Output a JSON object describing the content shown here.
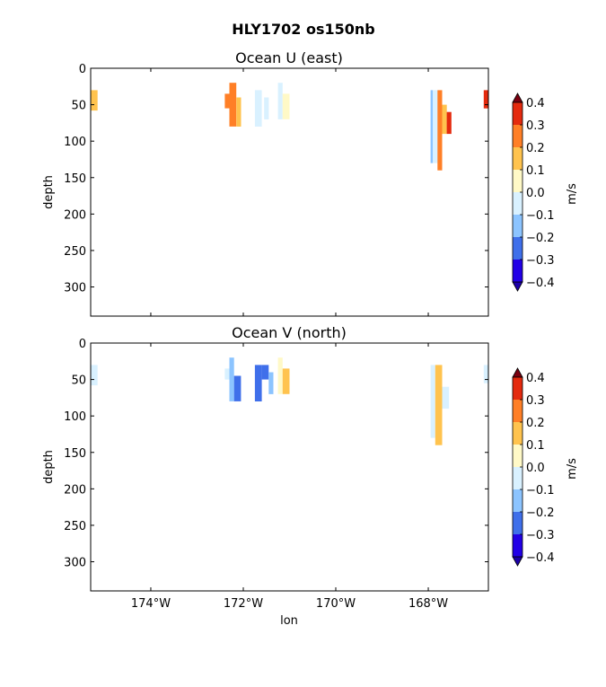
{
  "figure": {
    "suptitle": "HLY1702 os150nb"
  },
  "colorbar": {
    "levels": [
      -0.4,
      -0.3,
      -0.2,
      -0.1,
      0.0,
      0.1,
      0.2,
      0.3,
      0.4
    ],
    "tick_labels": [
      "−0.4",
      "−0.3",
      "−0.2",
      "−0.1",
      "0.0",
      "0.1",
      "0.2",
      "0.3",
      "0.4"
    ],
    "colors": [
      "#2200e6",
      "#3f6fea",
      "#8cc4ff",
      "#d9f1ff",
      "#fff9c7",
      "#ffc34e",
      "#ff7f26",
      "#e42a0e"
    ],
    "under_color": "#1c00a8",
    "over_color": "#7a0010",
    "label": "m/s"
  },
  "chart_data": [
    {
      "type": "heatmap",
      "title": "Ocean U (east)",
      "ylabel": "depth",
      "xlabel": "",
      "xlim": [
        -175.3,
        -166.7
      ],
      "ylim": [
        340,
        0
      ],
      "x_ticks": [
        -174,
        -172,
        -170,
        -168
      ],
      "x_tick_labels": [
        "174°W",
        "172°W",
        "170°W",
        "168°W"
      ],
      "y_ticks": [
        0,
        50,
        100,
        150,
        200,
        250,
        300
      ],
      "y_tick_labels": [
        "0",
        "50",
        "100",
        "150",
        "200",
        "250",
        "300"
      ],
      "grid": false,
      "blobs": [
        {
          "x0": -175.3,
          "x1": -175.15,
          "d0": 30,
          "d1": 58,
          "value": 0.15
        },
        {
          "x0": -172.4,
          "x1": -172.3,
          "d0": 35,
          "d1": 55,
          "value": 0.25
        },
        {
          "x0": -172.3,
          "x1": -172.15,
          "d0": 20,
          "d1": 80,
          "value": 0.25
        },
        {
          "x0": -172.15,
          "x1": -172.05,
          "d0": 40,
          "d1": 80,
          "value": 0.15
        },
        {
          "x0": -171.75,
          "x1": -171.6,
          "d0": 30,
          "d1": 80,
          "value": -0.05
        },
        {
          "x0": -171.55,
          "x1": -171.45,
          "d0": 40,
          "d1": 70,
          "value": -0.05
        },
        {
          "x0": -171.25,
          "x1": -171.15,
          "d0": 20,
          "d1": 70,
          "value": -0.05
        },
        {
          "x0": -171.15,
          "x1": -171.0,
          "d0": 35,
          "d1": 70,
          "value": 0.05
        },
        {
          "x0": -167.95,
          "x1": -167.9,
          "d0": 30,
          "d1": 130,
          "value": -0.15
        },
        {
          "x0": -167.9,
          "x1": -167.8,
          "d0": 30,
          "d1": 130,
          "value": -0.05
        },
        {
          "x0": -167.8,
          "x1": -167.7,
          "d0": 30,
          "d1": 140,
          "value": 0.25
        },
        {
          "x0": -167.7,
          "x1": -167.6,
          "d0": 50,
          "d1": 90,
          "value": 0.15
        },
        {
          "x0": -167.6,
          "x1": -167.5,
          "d0": 60,
          "d1": 90,
          "value": 0.35
        },
        {
          "x0": -166.8,
          "x1": -166.7,
          "d0": 30,
          "d1": 55,
          "value": 0.35
        }
      ]
    },
    {
      "type": "heatmap",
      "title": "Ocean V (north)",
      "ylabel": "depth",
      "xlabel": "lon",
      "xlim": [
        -175.3,
        -166.7
      ],
      "ylim": [
        340,
        0
      ],
      "x_ticks": [
        -174,
        -172,
        -170,
        -168
      ],
      "x_tick_labels": [
        "174°W",
        "172°W",
        "170°W",
        "168°W"
      ],
      "y_ticks": [
        0,
        50,
        100,
        150,
        200,
        250,
        300
      ],
      "y_tick_labels": [
        "0",
        "50",
        "100",
        "150",
        "200",
        "250",
        "300"
      ],
      "grid": false,
      "blobs": [
        {
          "x0": -175.3,
          "x1": -175.15,
          "d0": 30,
          "d1": 58,
          "value": -0.05
        },
        {
          "x0": -172.4,
          "x1": -172.3,
          "d0": 35,
          "d1": 50,
          "value": -0.05
        },
        {
          "x0": -172.3,
          "x1": -172.2,
          "d0": 20,
          "d1": 80,
          "value": -0.15
        },
        {
          "x0": -172.2,
          "x1": -172.05,
          "d0": 45,
          "d1": 80,
          "value": -0.25
        },
        {
          "x0": -171.75,
          "x1": -171.6,
          "d0": 30,
          "d1": 80,
          "value": -0.25
        },
        {
          "x0": -171.6,
          "x1": -171.45,
          "d0": 30,
          "d1": 50,
          "value": -0.25
        },
        {
          "x0": -171.45,
          "x1": -171.35,
          "d0": 40,
          "d1": 70,
          "value": -0.15
        },
        {
          "x0": -171.25,
          "x1": -171.15,
          "d0": 20,
          "d1": 70,
          "value": 0.05
        },
        {
          "x0": -171.15,
          "x1": -171.0,
          "d0": 35,
          "d1": 70,
          "value": 0.15
        },
        {
          "x0": -167.95,
          "x1": -167.85,
          "d0": 30,
          "d1": 130,
          "value": -0.05
        },
        {
          "x0": -167.85,
          "x1": -167.7,
          "d0": 30,
          "d1": 140,
          "value": 0.15
        },
        {
          "x0": -167.7,
          "x1": -167.55,
          "d0": 60,
          "d1": 90,
          "value": -0.05
        },
        {
          "x0": -166.8,
          "x1": -166.7,
          "d0": 30,
          "d1": 55,
          "value": -0.05
        }
      ]
    }
  ]
}
